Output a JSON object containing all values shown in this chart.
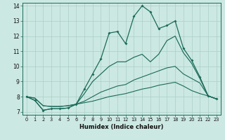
{
  "xlabel": "Humidex (Indice chaleur)",
  "xlim": [
    -0.5,
    23.5
  ],
  "ylim": [
    6.8,
    14.2
  ],
  "yticks": [
    7,
    8,
    9,
    10,
    11,
    12,
    13,
    14
  ],
  "xticks": [
    0,
    1,
    2,
    3,
    4,
    5,
    6,
    7,
    8,
    9,
    10,
    11,
    12,
    13,
    14,
    15,
    16,
    17,
    18,
    19,
    20,
    21,
    22,
    23
  ],
  "bg_color": "#cce8e2",
  "grid_color": "#aacfc8",
  "line_color": "#1a6b5a",
  "line1_y": [
    8.0,
    7.75,
    7.1,
    7.2,
    7.2,
    7.25,
    7.5,
    8.5,
    9.5,
    10.5,
    12.2,
    12.3,
    11.5,
    13.3,
    14.0,
    13.6,
    12.5,
    12.7,
    13.0,
    11.2,
    10.4,
    9.3,
    8.05,
    7.85
  ],
  "line2_y": [
    8.0,
    7.75,
    7.1,
    7.2,
    7.2,
    7.25,
    7.5,
    8.2,
    9.0,
    9.5,
    10.0,
    10.3,
    10.3,
    10.6,
    10.8,
    10.3,
    10.8,
    11.7,
    12.0,
    10.9,
    10.2,
    9.2,
    8.05,
    7.85
  ],
  "line3_y": [
    8.0,
    7.9,
    7.4,
    7.35,
    7.35,
    7.4,
    7.5,
    7.7,
    8.0,
    8.3,
    8.5,
    8.7,
    8.8,
    9.1,
    9.3,
    9.5,
    9.7,
    9.9,
    10.0,
    9.5,
    9.2,
    8.9,
    8.05,
    7.85
  ],
  "line4_y": [
    8.0,
    7.9,
    7.4,
    7.35,
    7.35,
    7.4,
    7.5,
    7.6,
    7.7,
    7.85,
    8.0,
    8.1,
    8.2,
    8.35,
    8.5,
    8.6,
    8.75,
    8.85,
    8.95,
    8.7,
    8.4,
    8.2,
    8.05,
    7.85
  ]
}
